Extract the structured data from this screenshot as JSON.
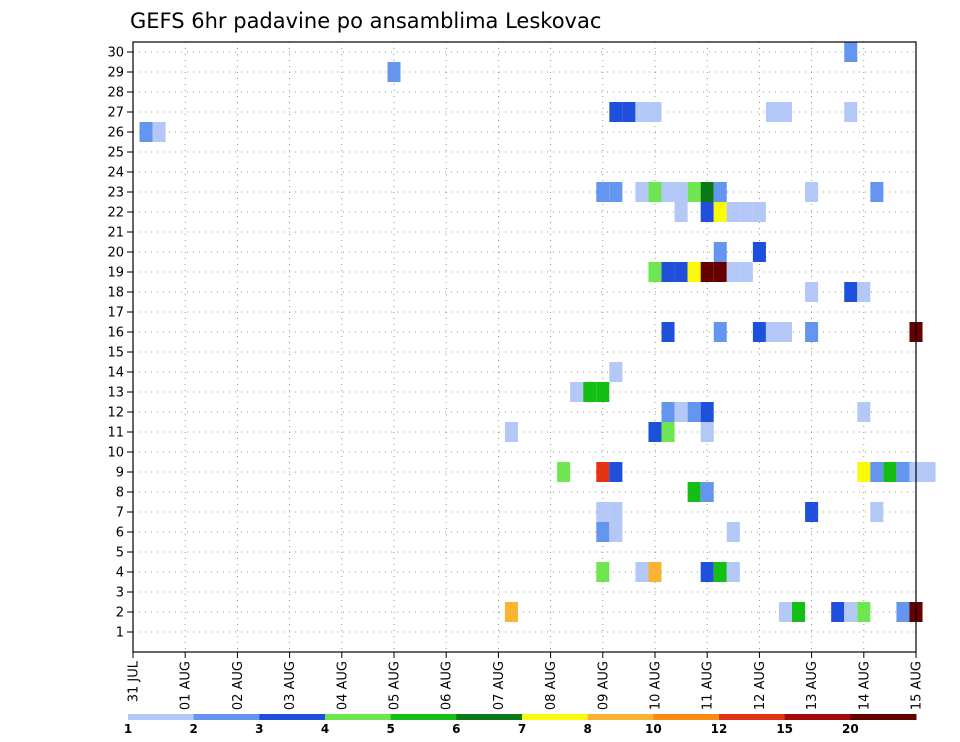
{
  "chart_data": {
    "type": "heatmap",
    "title": "GEFS 6hr padavine po ansamblima Leskovac",
    "x_tick_labels": [
      "31 JUL",
      "01 AUG",
      "02 AUG",
      "03 AUG",
      "04 AUG",
      "05 AUG",
      "06 AUG",
      "07 AUG",
      "08 AUG",
      "09 AUG",
      "10 AUG",
      "11 AUG",
      "12 AUG",
      "13 AUG",
      "14 AUG",
      "15 AUG"
    ],
    "x_range_days": [
      0,
      15
    ],
    "y_tick_labels": [
      "1",
      "2",
      "3",
      "4",
      "5",
      "6",
      "7",
      "8",
      "9",
      "10",
      "11",
      "12",
      "13",
      "14",
      "15",
      "16",
      "17",
      "18",
      "19",
      "20",
      "21",
      "22",
      "23",
      "24",
      "25",
      "26",
      "27",
      "28",
      "29",
      "30"
    ],
    "y_range": [
      0,
      30.5
    ],
    "grid": true,
    "colorbar": {
      "colors": [
        "#b4c8f8",
        "#6496f0",
        "#1e50dc",
        "#6ee650",
        "#14be14",
        "#0a7814",
        "#fafa0a",
        "#fab432",
        "#fa8c14",
        "#e63214",
        "#a50a0a",
        "#640000"
      ],
      "labels": [
        "1",
        "2",
        "3",
        "4",
        "5",
        "6",
        "7",
        "8",
        "10",
        "12",
        "15",
        "20"
      ]
    },
    "cells_format": "[time_days_from_31_JUL, ensemble_member, color_index]",
    "cells": [
      [
        13.75,
        30,
        1
      ],
      [
        5.0,
        29,
        1
      ],
      [
        9.25,
        27,
        2
      ],
      [
        9.5,
        27,
        2
      ],
      [
        9.75,
        27,
        0
      ],
      [
        10.0,
        27,
        0
      ],
      [
        12.25,
        27,
        0
      ],
      [
        12.5,
        27,
        0
      ],
      [
        13.75,
        27,
        0
      ],
      [
        0.25,
        26,
        1
      ],
      [
        0.5,
        26,
        0
      ],
      [
        9.0,
        23,
        1
      ],
      [
        9.25,
        23,
        1
      ],
      [
        9.75,
        23,
        0
      ],
      [
        10.0,
        23,
        3
      ],
      [
        10.25,
        23,
        0
      ],
      [
        10.5,
        23,
        0
      ],
      [
        10.75,
        23,
        3
      ],
      [
        11.0,
        23,
        5
      ],
      [
        11.25,
        23,
        1
      ],
      [
        13.0,
        23,
        0
      ],
      [
        14.25,
        23,
        1
      ],
      [
        10.5,
        22,
        0
      ],
      [
        11.0,
        22,
        2
      ],
      [
        11.25,
        22,
        6
      ],
      [
        11.5,
        22,
        0
      ],
      [
        11.75,
        22,
        0
      ],
      [
        12.0,
        22,
        0
      ],
      [
        11.25,
        20,
        1
      ],
      [
        12.0,
        20,
        2
      ],
      [
        10.0,
        19,
        3
      ],
      [
        10.25,
        19,
        2
      ],
      [
        10.5,
        19,
        2
      ],
      [
        10.75,
        19,
        6
      ],
      [
        11.0,
        19,
        11
      ],
      [
        11.25,
        19,
        11
      ],
      [
        11.5,
        19,
        0
      ],
      [
        11.75,
        19,
        0
      ],
      [
        13.0,
        18,
        0
      ],
      [
        13.75,
        18,
        2
      ],
      [
        14.0,
        18,
        0
      ],
      [
        10.25,
        16,
        2
      ],
      [
        11.25,
        16,
        1
      ],
      [
        12.0,
        16,
        2
      ],
      [
        12.25,
        16,
        0
      ],
      [
        12.5,
        16,
        0
      ],
      [
        13.0,
        16,
        1
      ],
      [
        15.0,
        16,
        11
      ],
      [
        9.25,
        14,
        0
      ],
      [
        8.5,
        13,
        0
      ],
      [
        8.75,
        13,
        4
      ],
      [
        9.0,
        13,
        4
      ],
      [
        10.25,
        12,
        1
      ],
      [
        10.5,
        12,
        0
      ],
      [
        10.75,
        12,
        1
      ],
      [
        11.0,
        12,
        2
      ],
      [
        14.0,
        12,
        0
      ],
      [
        7.25,
        11,
        0
      ],
      [
        10.0,
        11,
        2
      ],
      [
        10.25,
        11,
        3
      ],
      [
        11.0,
        11,
        0
      ],
      [
        8.25,
        9,
        3
      ],
      [
        9.0,
        9,
        9
      ],
      [
        9.25,
        9,
        2
      ],
      [
        14.0,
        9,
        6
      ],
      [
        14.25,
        9,
        1
      ],
      [
        14.5,
        9,
        4
      ],
      [
        14.75,
        9,
        1
      ],
      [
        15.0,
        9,
        0
      ],
      [
        15.25,
        9,
        0
      ],
      [
        10.75,
        8,
        4
      ],
      [
        11.0,
        8,
        1
      ],
      [
        9.0,
        7,
        0
      ],
      [
        9.25,
        7,
        0
      ],
      [
        13.0,
        7,
        2
      ],
      [
        14.25,
        7,
        0
      ],
      [
        9.0,
        6,
        1
      ],
      [
        9.25,
        6,
        0
      ],
      [
        11.5,
        6,
        0
      ],
      [
        9.0,
        4,
        3
      ],
      [
        9.75,
        4,
        0
      ],
      [
        10.0,
        4,
        7
      ],
      [
        11.0,
        4,
        2
      ],
      [
        11.25,
        4,
        4
      ],
      [
        11.5,
        4,
        0
      ],
      [
        7.25,
        2,
        7
      ],
      [
        12.5,
        2,
        0
      ],
      [
        12.75,
        2,
        4
      ],
      [
        13.5,
        2,
        2
      ],
      [
        13.75,
        2,
        0
      ],
      [
        14.0,
        2,
        3
      ],
      [
        14.75,
        2,
        1
      ],
      [
        15.0,
        2,
        11
      ]
    ]
  }
}
